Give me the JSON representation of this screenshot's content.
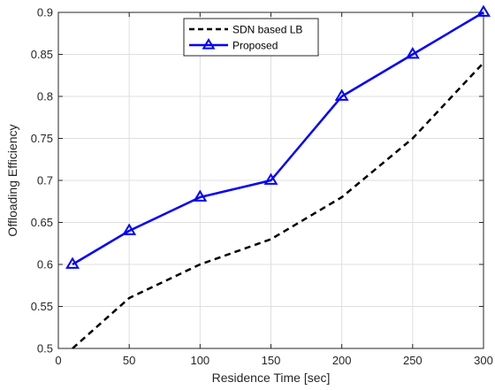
{
  "chart_data": {
    "type": "line",
    "title": "",
    "xlabel": "Residence Time [sec]",
    "ylabel": "Offloading Efficiency",
    "xlim": [
      0,
      300
    ],
    "ylim": [
      0.5,
      0.9
    ],
    "xticks": [
      0,
      50,
      100,
      150,
      200,
      250,
      300
    ],
    "yticks": [
      0.5,
      0.55,
      0.6,
      0.65,
      0.7,
      0.75,
      0.8,
      0.85,
      0.9
    ],
    "xtick_labels": [
      "0",
      "50",
      "100",
      "150",
      "200",
      "250",
      "300"
    ],
    "ytick_labels": [
      "0.5",
      "0.55",
      "0.6",
      "0.65",
      "0.7",
      "0.75",
      "0.8",
      "0.85",
      "0.9"
    ],
    "grid": true,
    "legend_position": "top-center",
    "series": [
      {
        "name": "SDN based LB",
        "color": "#000000",
        "line_style": "dashed",
        "marker": "none",
        "x": [
          10,
          50,
          100,
          150,
          200,
          250,
          300
        ],
        "y": [
          0.5,
          0.56,
          0.6,
          0.63,
          0.68,
          0.75,
          0.84
        ]
      },
      {
        "name": "Proposed",
        "color": "#0000ff",
        "line_style": "solid",
        "marker": "triangle",
        "x": [
          10,
          50,
          100,
          150,
          200,
          250,
          300
        ],
        "y": [
          0.6,
          0.64,
          0.68,
          0.7,
          0.8,
          0.85,
          0.9
        ]
      }
    ]
  }
}
